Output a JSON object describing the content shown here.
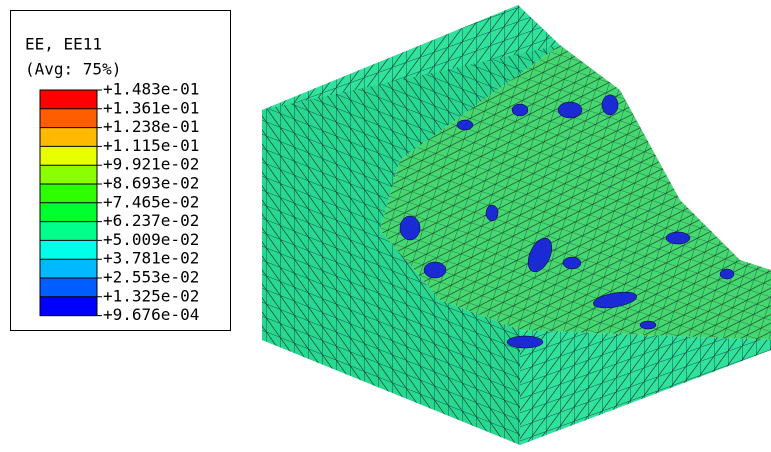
{
  "legend": {
    "title": "EE, EE11",
    "subtitle": "(Avg: 75%)",
    "labels": [
      "+1.483e-01",
      "+1.361e-01",
      "+1.238e-01",
      "+1.115e-01",
      "+9.921e-02",
      "+8.693e-02",
      "+7.465e-02",
      "+6.237e-02",
      "+5.009e-02",
      "+3.781e-02",
      "+2.553e-02",
      "+1.325e-02",
      "+9.676e-04"
    ]
  }
}
